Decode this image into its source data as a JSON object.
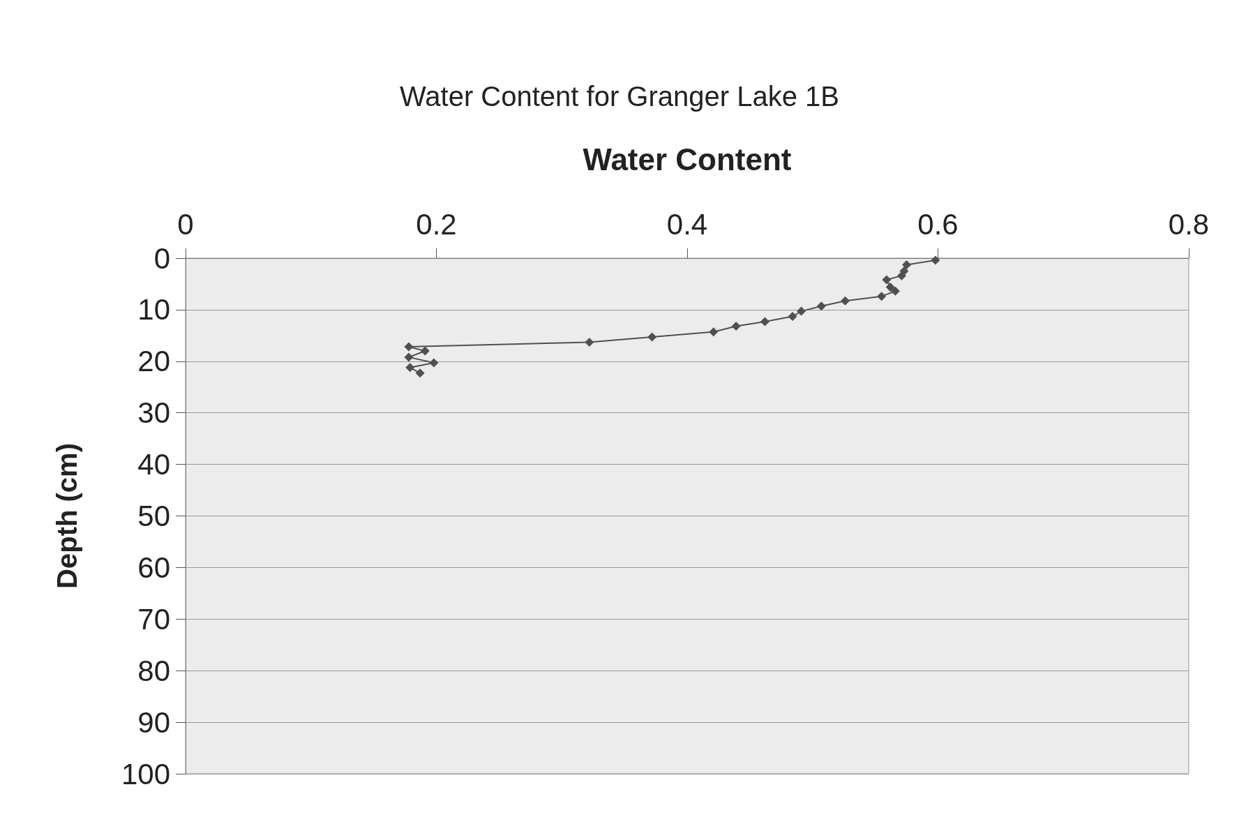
{
  "chart_data": {
    "type": "line",
    "title": "Water Content for Granger Lake 1B",
    "xlabel": "Water Content",
    "ylabel": "Depth (cm)",
    "x": [
      0.598,
      0.575,
      0.573,
      0.571,
      0.559,
      0.562,
      0.566,
      0.555,
      0.526,
      0.507,
      0.491,
      0.484,
      0.462,
      0.439,
      0.421,
      0.372,
      0.322,
      0.178,
      0.191,
      0.178,
      0.198,
      0.179,
      0.187
    ],
    "series": [
      {
        "color": "#505050",
        "values": [
          0.4,
          1.3,
          2.5,
          3.4,
          4.2,
          5.6,
          6.4,
          7.4,
          8.3,
          9.3,
          10.3,
          11.3,
          12.3,
          13.2,
          14.3,
          15.3,
          16.3,
          17.2,
          18.0,
          19.2,
          20.3,
          21.2,
          22.3
        ]
      }
    ],
    "xlim": [
      0,
      0.8
    ],
    "xticks": [
      0,
      0.2,
      0.4,
      0.6,
      0.8
    ],
    "ylim": [
      100,
      0
    ],
    "yticks": [
      0,
      10,
      20,
      30,
      40,
      50,
      60,
      70,
      80,
      90,
      100
    ],
    "grid": "y",
    "marker": "diamond",
    "line_style": "solid"
  }
}
